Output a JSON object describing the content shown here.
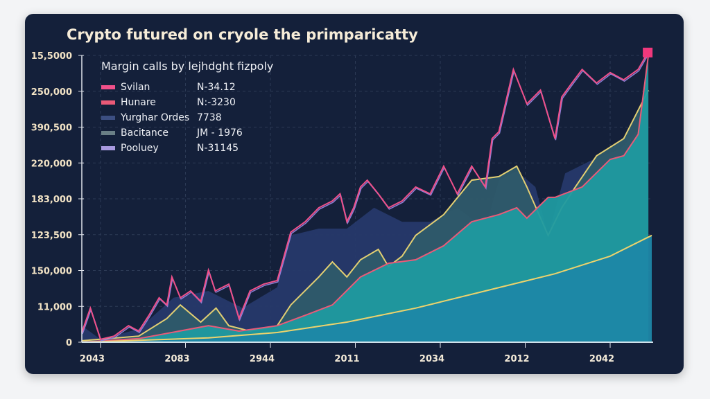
{
  "chart_data": {
    "type": "area",
    "title": "Crypto futured on cryole the primparicatty",
    "legend_title": "Margin calls by lejhdght fizpoly",
    "legend_position": "top-left",
    "grid": true,
    "xlim": [
      -0.22,
      6.49
    ],
    "ylim": [
      0,
      8
    ],
    "x_tick_labels": [
      "2043",
      "2083",
      "2944",
      "2011",
      "2034",
      "2012",
      "2042"
    ],
    "y_tick_labels": [
      "0",
      "11,000",
      "150,000",
      "123,500",
      "183,000",
      "220,000",
      "390,500",
      "250,000",
      "15,5000"
    ],
    "legend": [
      {
        "name": "Svilan",
        "value": "N-34.12",
        "color": "#f0508a"
      },
      {
        "name": "Hunare",
        "value": "N:-3230",
        "color": "#ea5a78"
      },
      {
        "name": "Yurghar Ordes",
        "value": "7738",
        "color": "#3c4f82"
      },
      {
        "name": "Bacitance",
        "value": "JM - 1976",
        "color": "#6a7f86"
      },
      {
        "name": "Pooluey",
        "value": "N-31145",
        "color": "#a99ae0"
      }
    ],
    "series": [
      {
        "name": "Yurghar Ordes",
        "kind": "area",
        "color": "#26396a",
        "x": [
          -0.22,
          0,
          0.45,
          0.86,
          1.27,
          1.67,
          2.08,
          2.24,
          2.57,
          2.9,
          3.22,
          3.55,
          3.88,
          4.2,
          4.53,
          4.69,
          4.9,
          5.12,
          5.27,
          5.47,
          5.8,
          6.12,
          6.45
        ],
        "y": [
          0.46,
          0.08,
          0.37,
          1.24,
          1.43,
          0.95,
          1.53,
          2.98,
          3.17,
          3.17,
          3.75,
          3.36,
          3.36,
          3.75,
          3.17,
          4.52,
          4.77,
          4.33,
          2.98,
          4.71,
          5.1,
          5.39,
          6.26
        ]
      },
      {
        "name": "Bacitance",
        "kind": "area",
        "color": "#2e5a6a",
        "line": "#e3cf72",
        "x": [
          -0.22,
          0.45,
          0.78,
          0.94,
          1.18,
          1.36,
          1.51,
          1.76,
          2.08,
          2.24,
          2.57,
          2.73,
          2.9,
          3.06,
          3.27,
          3.39,
          3.55,
          3.71,
          4.04,
          4.37,
          4.69,
          4.9,
          5.02,
          5.27,
          5.43,
          5.59,
          5.84,
          6.16,
          6.45
        ],
        "y": [
          0.04,
          0.17,
          0.66,
          1.04,
          0.56,
          0.95,
          0.46,
          0.31,
          0.46,
          1.04,
          1.82,
          2.24,
          1.82,
          2.3,
          2.59,
          2.11,
          2.4,
          2.98,
          3.56,
          4.52,
          4.62,
          4.91,
          4.33,
          2.98,
          3.75,
          4.33,
          5.2,
          5.68,
          7.03
        ]
      },
      {
        "name": "Hunare",
        "kind": "area",
        "color": "#1f9aa0",
        "line": "#ea5a78",
        "x": [
          -0.22,
          0.45,
          1.27,
          1.63,
          2.08,
          2.41,
          2.73,
          3.06,
          3.39,
          3.71,
          4.04,
          4.37,
          4.69,
          4.9,
          5.02,
          5.27,
          5.35,
          5.67,
          6.0,
          6.16,
          6.33,
          6.45
        ],
        "y": [
          0,
          0.1,
          0.46,
          0.31,
          0.46,
          0.75,
          1.04,
          1.82,
          2.2,
          2.3,
          2.69,
          3.36,
          3.56,
          3.75,
          3.46,
          4.04,
          4.04,
          4.33,
          5.1,
          5.2,
          5.8,
          8.0
        ]
      },
      {
        "name": "Pooluey",
        "kind": "area",
        "color": "#1d87a6",
        "line": "#edd36c",
        "x": [
          -0.22,
          1.27,
          2.08,
          2.9,
          3.71,
          4.53,
          5.35,
          6.0,
          6.49
        ],
        "y": [
          0,
          0.12,
          0.27,
          0.56,
          0.95,
          1.43,
          1.91,
          2.4,
          2.98
        ]
      },
      {
        "name": "Svilan",
        "kind": "line",
        "color": "#f0508a",
        "x": [
          -0.22,
          -0.12,
          0,
          0.16,
          0.33,
          0.45,
          0.57,
          0.69,
          0.78,
          0.84,
          0.94,
          1.06,
          1.18,
          1.27,
          1.35,
          1.51,
          1.63,
          1.76,
          1.92,
          2.08,
          2.24,
          2.41,
          2.57,
          2.73,
          2.82,
          2.9,
          2.98,
          3.06,
          3.14,
          3.27,
          3.39,
          3.55,
          3.71,
          3.88,
          4.04,
          4.2,
          4.37,
          4.53,
          4.61,
          4.69,
          4.86,
          5.02,
          5.18,
          5.35,
          5.43,
          5.55,
          5.67,
          5.84,
          6.0,
          6.16,
          6.33,
          6.45
        ],
        "y": [
          0.27,
          0.95,
          0.08,
          0.17,
          0.46,
          0.31,
          0.75,
          1.24,
          1.04,
          1.82,
          1.24,
          1.43,
          1.14,
          2.01,
          1.43,
          1.62,
          0.66,
          1.43,
          1.62,
          1.72,
          3.07,
          3.36,
          3.75,
          3.94,
          4.14,
          3.36,
          3.75,
          4.33,
          4.52,
          4.14,
          3.75,
          3.94,
          4.33,
          4.14,
          4.91,
          4.14,
          4.91,
          4.33,
          5.68,
          5.87,
          7.61,
          6.65,
          7.03,
          5.68,
          6.84,
          7.23,
          7.61,
          7.23,
          7.52,
          7.32,
          7.61,
          8.1
        ]
      }
    ]
  }
}
